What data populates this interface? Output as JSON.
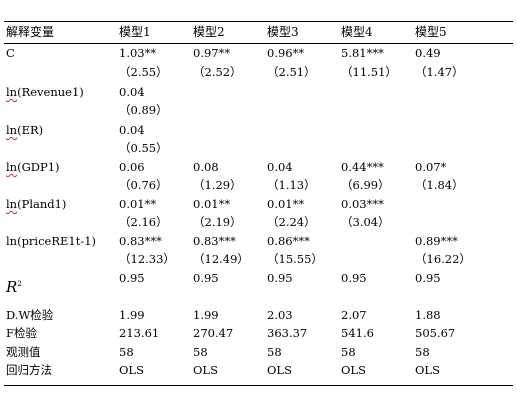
{
  "table": {
    "header": {
      "variable": "解释变量",
      "models": [
        "模型1",
        "模型2",
        "模型3",
        "模型4",
        "模型5"
      ]
    },
    "rows": [
      {
        "label_prefix": "C",
        "label_rest": "",
        "coef": [
          "1.03**",
          "0.97**",
          "0.96**",
          "5.81***",
          "0.49"
        ],
        "t": [
          "（2.55）",
          "（2.52）",
          "（2.51）",
          "（11.51）",
          "（1.47）"
        ]
      },
      {
        "label_prefix": "ln",
        "label_rest": "(Revenue1)",
        "coef": [
          "0.04",
          "",
          "",
          "",
          ""
        ],
        "t": [
          "（0.89）",
          "",
          "",
          "",
          ""
        ]
      },
      {
        "label_prefix": "ln",
        "label_rest": "(ER)",
        "coef": [
          "0.04",
          "",
          "",
          "",
          ""
        ],
        "t": [
          "（0.55）",
          "",
          "",
          "",
          ""
        ]
      },
      {
        "label_prefix": "ln",
        "label_rest": "(GDP1)",
        "coef": [
          "0.06",
          "0.08",
          "0.04",
          "0.44***",
          "0.07*"
        ],
        "t": [
          "（0.76）",
          "（1.29）",
          "（1.13）",
          "（6.99）",
          "（1.84）"
        ]
      },
      {
        "label_prefix": "ln",
        "label_rest": "(Pland1)",
        "coef": [
          "0.01**",
          "0.01**",
          "0.01**",
          "0.03***",
          ""
        ],
        "t": [
          "（2.16）",
          "（2.19）",
          "（2.24）",
          "（3.04）",
          ""
        ]
      },
      {
        "label_prefix": "ln(priceRE1t-1)",
        "label_rest": "",
        "coef": [
          "0.83***",
          "0.83***",
          "0.86***",
          "",
          "0.89***"
        ],
        "t": [
          "（12.33）",
          "（12.49）",
          "（15.55）",
          "",
          "（16.22）"
        ]
      }
    ],
    "stats": {
      "r2": {
        "symbol": "R",
        "sup": "2",
        "values": [
          "0.95",
          "0.95",
          "0.95",
          "0.95",
          "0.95"
        ]
      },
      "dw": {
        "label": "D.W检验",
        "values": [
          "1.99",
          "1.99",
          "2.03",
          "2.07",
          "1.88"
        ]
      },
      "f": {
        "label": "F检验",
        "values": [
          "213.61",
          "270.47",
          "363.37",
          "541.6",
          "505.67"
        ]
      },
      "n": {
        "label": "观测值",
        "values": [
          "58",
          "58",
          "58",
          "58",
          "58"
        ]
      },
      "method": {
        "label": "回归方法",
        "values": [
          "OLS",
          "OLS",
          "OLS",
          "OLS",
          "OLS"
        ]
      }
    }
  }
}
